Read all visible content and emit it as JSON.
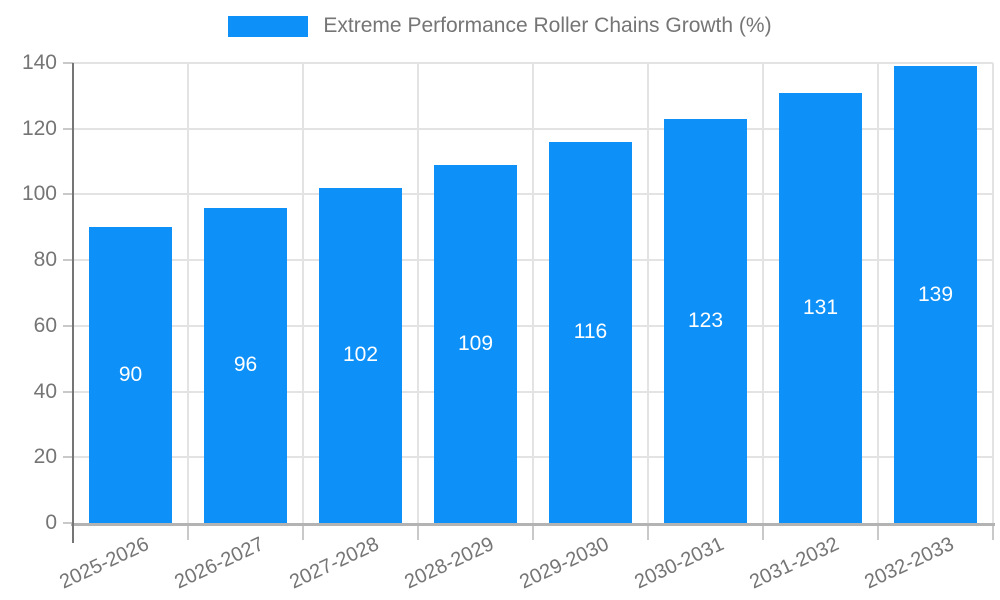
{
  "chart_data": {
    "type": "bar",
    "title": "Extreme Performance Roller Chains Growth (%)",
    "categories": [
      "2025-2026",
      "2026-2027",
      "2027-2028",
      "2028-2029",
      "2029-2030",
      "2030-2031",
      "2031-2032",
      "2032-2033"
    ],
    "values": [
      90,
      96,
      102,
      109,
      116,
      123,
      131,
      139
    ],
    "xlabel": "",
    "ylabel": "",
    "ylim": [
      0,
      140
    ],
    "yticks": [
      0,
      20,
      40,
      60,
      80,
      100,
      120,
      140
    ],
    "grid": true,
    "legend_position": "top",
    "bar_color": "#0D90F8",
    "value_label_color": "#ffffff",
    "axis_text_color": "#757575",
    "gridline_color": "#e3e3e3"
  }
}
